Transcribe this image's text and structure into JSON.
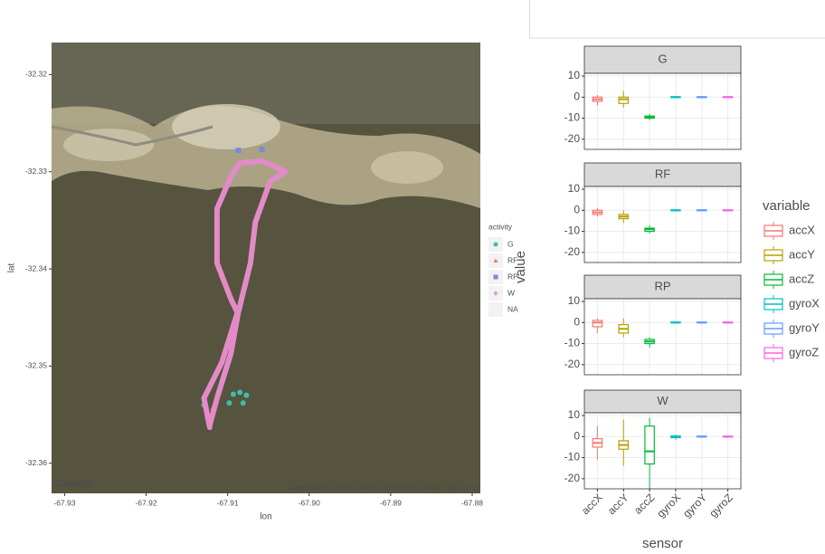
{
  "chart_data": [
    {
      "type": "scatter",
      "x_label": "lon",
      "y_label": "lat",
      "legend_title": "activity",
      "logo": "Google",
      "credit": "Imagery ©2019 , CNES / Airbus, DigitalGlobe, Landsat / Copernicus",
      "xlim": [
        -67.9316,
        -67.879
      ],
      "ylim": [
        -32.3631,
        -32.3167
      ],
      "xticks": [
        -67.93,
        -67.92,
        -67.91,
        {
          "value": -67.9,
          "label": "-67.90"
        },
        -67.89,
        -67.88
      ],
      "yticks": [
        -32.36,
        -32.35,
        -32.34,
        -32.33,
        -32.32
      ],
      "series": [
        {
          "name": "G",
          "color": "#3cbfa9",
          "shape": "circle",
          "x": [
            -67.9129,
            -67.9098,
            -67.9093,
            -67.9085,
            -67.9077,
            -67.9081
          ],
          "y": [
            -32.354,
            -32.3538,
            -32.3529,
            -32.3527,
            -32.353,
            -32.3538
          ]
        },
        {
          "name": "RF",
          "color": "#f8766d",
          "shape": "triangle",
          "x": [
            -67.9118
          ],
          "y": [
            -32.3543
          ]
        },
        {
          "name": "RP",
          "color": "#7c89d8",
          "shape": "square",
          "x": [
            -67.9087,
            -67.9058
          ],
          "y": [
            -32.3278,
            -32.3277
          ]
        },
        {
          "name": "W",
          "color": "#e38ac8",
          "shape": "plus",
          "mode": "line",
          "x": [
            -67.9122,
            -67.9129,
            -67.9107,
            -67.9088,
            -67.9096,
            -67.9113,
            -67.9113,
            -67.9096,
            -67.9085,
            -67.9057,
            -67.9029,
            -67.9048,
            -67.9066,
            -67.9072,
            -67.9087,
            -67.9096,
            -67.9113,
            -67.9122
          ],
          "y": [
            -32.3563,
            -32.3533,
            -32.3496,
            -32.3445,
            -32.3431,
            -32.3394,
            -32.3338,
            -32.3305,
            -32.3291,
            -32.3289,
            -32.33,
            -32.331,
            -32.3352,
            -32.3394,
            -32.3445,
            -32.3487,
            -32.3533,
            -32.3561
          ]
        },
        {
          "name": "NA",
          "x": [],
          "y": []
        }
      ]
    },
    {
      "type": "box",
      "x_label": "sensor",
      "y_label": "value",
      "legend_title": "variable",
      "categories": [
        "accX",
        "accY",
        "accZ",
        "gyroX",
        "gyroY",
        "gyroZ"
      ],
      "colors": [
        "#f8766d",
        "#b79f00",
        "#00ba38",
        "#00bfc4",
        "#619cff",
        "#f564e3"
      ],
      "ylim": [
        -24.8,
        11.3
      ],
      "yticks": [
        -20,
        -10,
        0,
        10
      ],
      "panels": [
        {
          "title": "G",
          "stats": [
            [
              -4,
              -2,
              -1,
              0,
              1
            ],
            [
              -5,
              -3,
              -1,
              0,
              3
            ],
            [
              -11,
              -10,
              -9.5,
              -9,
              -8
            ],
            [
              -0.5,
              -0.2,
              0,
              0.2,
              0.5
            ],
            [
              -0.5,
              -0.2,
              0,
              0.2,
              0.5
            ],
            [
              -0.5,
              -0.2,
              0,
              0.2,
              0.5
            ]
          ]
        },
        {
          "title": "RF",
          "stats": [
            [
              -3,
              -2,
              -1,
              0,
              1
            ],
            [
              -6,
              -4,
              -3,
              -2,
              0
            ],
            [
              -11,
              -10,
              -9,
              -8.5,
              -7
            ],
            [
              -0.5,
              -0.2,
              0,
              0.2,
              0.5
            ],
            [
              -0.5,
              -0.2,
              0,
              0.2,
              0.5
            ],
            [
              -0.5,
              -0.2,
              0,
              0.2,
              0.5
            ]
          ]
        },
        {
          "title": "RP",
          "stats": [
            [
              -5,
              -2,
              0,
              1,
              2
            ],
            [
              -7,
              -5,
              -3,
              -1,
              2
            ],
            [
              -12,
              -10,
              -9,
              -8,
              -7
            ],
            [
              -0.5,
              -0.2,
              0,
              0.2,
              0.5
            ],
            [
              -0.5,
              -0.2,
              0,
              0.2,
              0.5
            ],
            [
              -0.5,
              -0.2,
              0,
              0.2,
              0.5
            ]
          ]
        },
        {
          "title": "W",
          "stats": [
            [
              -11,
              -5,
              -3,
              -1,
              5
            ],
            [
              -14,
              -6,
              -4,
              -2,
              8
            ],
            [
              -25,
              -13,
              -7,
              5,
              9
            ],
            [
              -1.5,
              -0.5,
              0,
              0.3,
              1
            ],
            [
              -0.5,
              -0.2,
              0,
              0.2,
              0.5
            ],
            [
              -0.5,
              -0.2,
              0,
              0.2,
              0.5
            ]
          ]
        }
      ]
    }
  ]
}
